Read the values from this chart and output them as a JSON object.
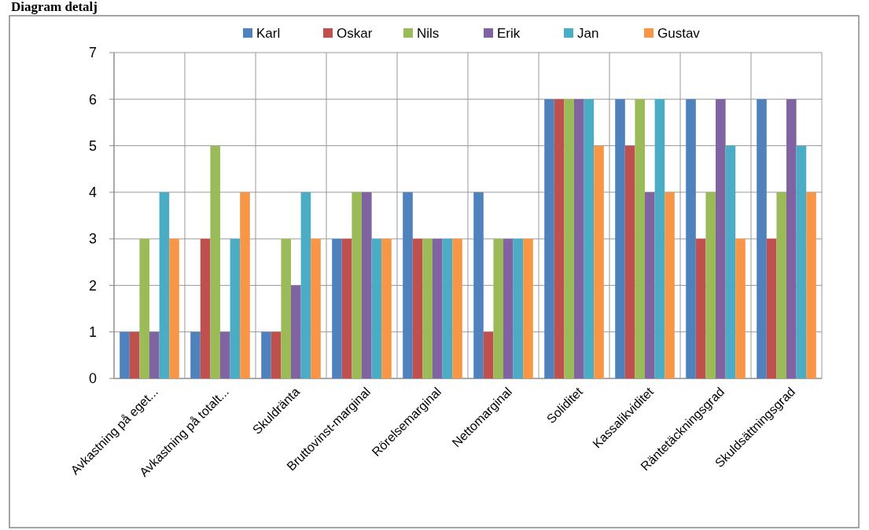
{
  "chart_data": {
    "type": "bar",
    "title": "Diagram detalj",
    "categories": [
      "Avkastning på eget...",
      "Avkastning på totalt...",
      "Skuldränta",
      "Bruttovinst-marginal",
      "Rörelsemarginal",
      "Nettomarginal",
      "Soliditet",
      "Kassalikviditet",
      "Räntetäckningsgrad",
      "Skuldsättningsgrad"
    ],
    "series": [
      {
        "name": "Karl",
        "color": "#4f81bd",
        "values": [
          1,
          1,
          1,
          3,
          4,
          4,
          6,
          6,
          6,
          6
        ]
      },
      {
        "name": "Oskar",
        "color": "#c0504d",
        "values": [
          1,
          3,
          1,
          3,
          3,
          1,
          6,
          5,
          3,
          3
        ]
      },
      {
        "name": "Nils",
        "color": "#9bbb59",
        "values": [
          3,
          5,
          3,
          4,
          3,
          3,
          6,
          6,
          4,
          4
        ]
      },
      {
        "name": "Erik",
        "color": "#8064a2",
        "values": [
          1,
          1,
          2,
          4,
          3,
          3,
          6,
          4,
          6,
          6
        ]
      },
      {
        "name": "Jan",
        "color": "#4bacc6",
        "values": [
          4,
          3,
          4,
          3,
          3,
          3,
          6,
          6,
          5,
          5
        ]
      },
      {
        "name": "Gustav",
        "color": "#f79646",
        "values": [
          3,
          4,
          3,
          3,
          3,
          3,
          5,
          4,
          3,
          4
        ]
      }
    ],
    "ylim": [
      0,
      7
    ],
    "yticks": [
      0,
      1,
      2,
      3,
      4,
      5,
      6,
      7
    ],
    "grid": true,
    "legend": "top"
  }
}
